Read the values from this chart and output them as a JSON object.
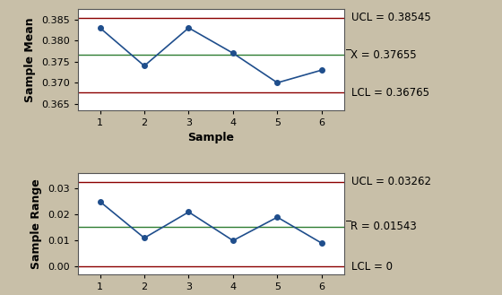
{
  "xbar_samples": [
    1,
    2,
    3,
    4,
    5,
    6
  ],
  "xbar_values": [
    0.383,
    0.374,
    0.383,
    0.377,
    0.37,
    0.373
  ],
  "xbar_UCL": 0.38545,
  "xbar_CL": 0.37655,
  "xbar_LCL": 0.36765,
  "xbar_ylim": [
    0.3635,
    0.3875
  ],
  "xbar_yticks": [
    0.365,
    0.37,
    0.375,
    0.38,
    0.385
  ],
  "xbar_ylabel": "Sample Mean",
  "xbar_UCL_label": "UCL = 0.38545",
  "xbar_CL_label": "̅̅X = 0.37655",
  "xbar_LCL_label": "LCL = 0.36765",
  "r_samples": [
    1,
    2,
    3,
    4,
    5,
    6
  ],
  "r_values": [
    0.025,
    0.011,
    0.021,
    0.01,
    0.019,
    0.009
  ],
  "r_UCL": 0.03262,
  "r_CL": 0.01543,
  "r_LCL": 0.0,
  "r_ylim": [
    -0.003,
    0.036
  ],
  "r_yticks": [
    0.0,
    0.01,
    0.02,
    0.03
  ],
  "r_ylabel": "Sample Range",
  "r_UCL_label": "UCL = 0.03262",
  "r_CL_label": "̅R = 0.01543",
  "r_LCL_label": "LCL = 0",
  "xlabel": "Sample",
  "xticks": [
    1,
    2,
    3,
    4,
    5,
    6
  ],
  "line_color": "#1F4E8C",
  "UCL_color": "#8B0000",
  "LCL_color": "#8B0000",
  "CL_color": "#2E7D32",
  "bg_color": "#C8BFA8",
  "plot_bg_color": "#FFFFFF",
  "annotation_fontsize": 8.5,
  "axis_label_fontsize": 9,
  "tick_fontsize": 8
}
